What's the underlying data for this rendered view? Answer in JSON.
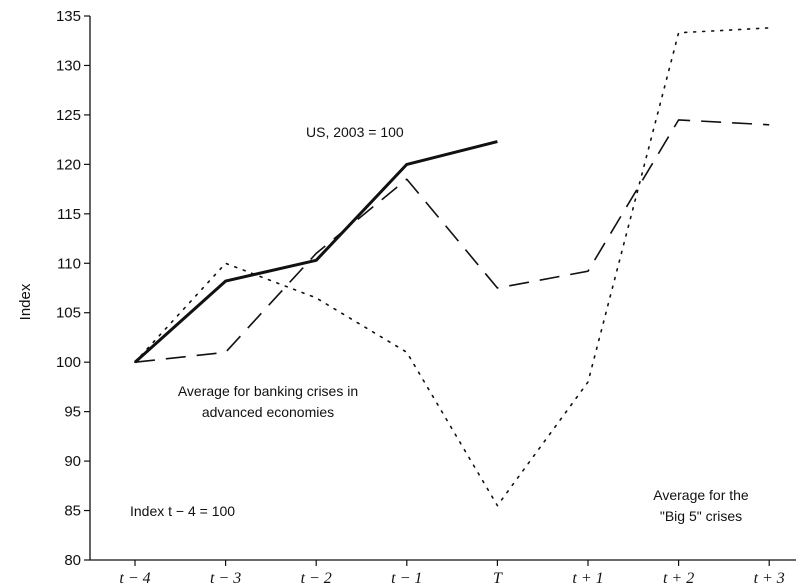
{
  "chart_data": {
    "type": "line",
    "title": "",
    "xlabel": "",
    "ylabel": "Index",
    "ylim": [
      80,
      135
    ],
    "yticks": [
      80,
      85,
      90,
      95,
      100,
      105,
      110,
      115,
      120,
      125,
      130,
      135
    ],
    "categories": [
      "t − 4",
      "t − 3",
      "t − 2",
      "t − 1",
      "T",
      "t + 1",
      "t + 2",
      "t + 3"
    ],
    "grid": false,
    "series": [
      {
        "name": "US, 2003 = 100",
        "style": "solid",
        "color": "#111111",
        "values": [
          100,
          108.2,
          110.3,
          120,
          122.3,
          null,
          null,
          null
        ]
      },
      {
        "name": "Average for banking crises in advanced economies",
        "style": "dashed",
        "color": "#111111",
        "values": [
          100,
          101,
          111,
          118.5,
          107.5,
          109.2,
          124.5,
          124
        ]
      },
      {
        "name": "Average for the \"Big 5\" crises",
        "style": "dotted",
        "color": "#111111",
        "values": [
          100,
          110,
          106.5,
          101,
          85.5,
          98,
          133.3,
          133.8
        ]
      }
    ],
    "annotations": [
      {
        "id": "us",
        "lines": [
          "US, 2003 = 100"
        ]
      },
      {
        "id": "avg",
        "lines": [
          "Average for banking crises in",
          "advanced economies"
        ]
      },
      {
        "id": "index",
        "lines": [
          "Index t − 4 = 100"
        ]
      },
      {
        "id": "big5",
        "lines": [
          "Average for the",
          "\"Big 5\" crises"
        ]
      }
    ]
  }
}
